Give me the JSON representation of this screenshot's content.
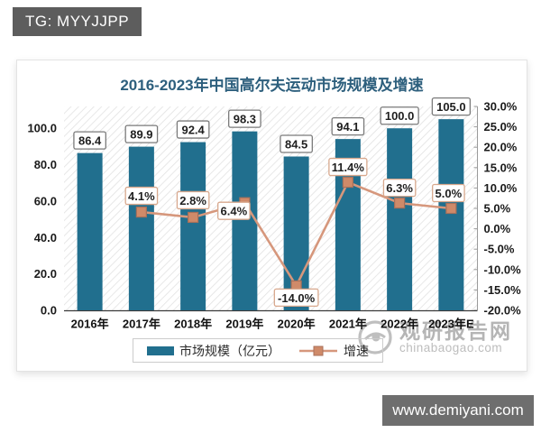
{
  "tag": {
    "label": "TG: MYYJJPP"
  },
  "footer_tag": {
    "label": "www.demiyani.com"
  },
  "watermark": {
    "brand": "观研报告网",
    "domain": "chinabaogao.com"
  },
  "chart_data": {
    "type": "bar",
    "title": "2016-2023年中国高尔夫运动市场规模及增速",
    "categories": [
      "2016年",
      "2017年",
      "2018年",
      "2019年",
      "2020年",
      "2021年",
      "2022年",
      "2023年E"
    ],
    "series": [
      {
        "name": "市场规模（亿元）",
        "type": "bar",
        "axis": "left",
        "values": [
          86.4,
          89.9,
          92.4,
          98.3,
          84.5,
          94.1,
          100.0,
          105.0
        ],
        "labels": [
          "86.4",
          "89.9",
          "92.4",
          "98.3",
          "84.5",
          "94.1",
          "100.0",
          "105.0"
        ],
        "color": "#216f8e"
      },
      {
        "name": "增速",
        "type": "line",
        "axis": "right",
        "values": [
          null,
          4.1,
          2.8,
          6.4,
          -14.0,
          11.4,
          6.3,
          5.0
        ],
        "labels": [
          null,
          "4.1%",
          "2.8%",
          "6.4%",
          "-14.0%",
          "11.4%",
          "6.3%",
          "5.0%"
        ],
        "color": "#d6977c",
        "marker_fill": "#cf8a69",
        "marker_stroke": "#a8705a"
      }
    ],
    "left_axis": {
      "ticks": [
        "0.0",
        "20.0",
        "40.0",
        "60.0",
        "80.0",
        "100.0"
      ],
      "min": 0,
      "max": 112
    },
    "right_axis": {
      "ticks": [
        "30.0%",
        "25.0%",
        "20.0%",
        "15.0%",
        "10.0%",
        "5.0%",
        "0.0%",
        "-5.0%",
        "-10.0%",
        "-15.0%",
        "-20.0%"
      ],
      "min": -20,
      "max": 30
    },
    "legend": [
      {
        "label": "市场规模（亿元）"
      },
      {
        "label": "增速"
      }
    ],
    "style": {
      "bar_label_border": "#7a7a7a",
      "line_label_border": "#d8a88d",
      "hatch_line": "#e2e2e2",
      "axis_line": "#3a3a3a",
      "tick_text": "#1a1a1a"
    },
    "grid": "off",
    "legend_position": "bottom"
  }
}
